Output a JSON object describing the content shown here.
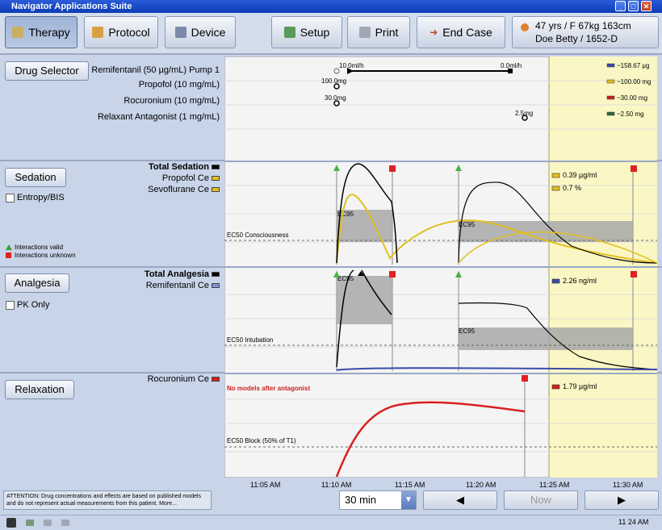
{
  "window": {
    "title": "Navigator Applications Suite"
  },
  "toolbar": {
    "therapy": "Therapy",
    "protocol": "Protocol",
    "device": "Device",
    "setup": "Setup",
    "print": "Print",
    "end_case": "End Case"
  },
  "patient": {
    "line1": "47 yrs / F   67kg  163cm",
    "line2": "Doe Betty / 1652-D"
  },
  "drug_panel": {
    "button": "Drug Selector",
    "drugs": [
      {
        "name": "Remifentanil (50 µg/mL) Pump 1",
        "value": "~158.67 µg",
        "color": "#3a4aa8"
      },
      {
        "name": "Propofol (10 mg/mL)",
        "value": "~100.00 mg",
        "color": "#e0c020"
      },
      {
        "name": "Rocuronium (10 mg/mL)",
        "value": "~30.00 mg",
        "color": "#d02020"
      },
      {
        "name": "Relaxant Antagonist (1 mg/mL)",
        "value": "~2.50 mg",
        "color": "#2a6a3a"
      }
    ],
    "events": {
      "remi_start": "10.0ml/h",
      "remi_stop": "0.0ml/h",
      "propofol": "100.0mg",
      "rocuronium": "30.0mg",
      "antagonist": "2.5mg"
    }
  },
  "sedation": {
    "button": "Sedation",
    "checkbox": "Entropy/BIS",
    "legend": [
      "Total Sedation",
      "Propofol Ce",
      "Sevoflurane Ce"
    ],
    "interactions_valid": "Interactions valid",
    "interactions_unknown": "Interactions unknown",
    "ec_label": "EC50 Consciousness",
    "ec95": "EC95",
    "value1": "0.39 µg/ml",
    "value2": "0.7 %"
  },
  "analgesia": {
    "button": "Analgesia",
    "checkbox": "PK Only",
    "legend": [
      "Total Analgesia",
      "Remifentanil Ce"
    ],
    "ec_label": "EC50 Intubation",
    "ec95": "EC95",
    "value1": "2.26 ng/ml"
  },
  "relaxation": {
    "button": "Relaxation",
    "legend": [
      "Rocuronium Ce"
    ],
    "note": "No models after antagonist",
    "ec_label": "EC50 Block (50% of T1)",
    "value1": "1.79 µg/ml"
  },
  "time_axis": [
    "11:05 AM",
    "11:10 AM",
    "11:15 AM",
    "11:20 AM",
    "11:25 AM",
    "11:30 AM"
  ],
  "bottom": {
    "attention": "ATTENTION: Drug concentrations and effects are based on published models and do not represent actual measurements from this patient. More...",
    "range": "30 min",
    "now": "Now",
    "clock": "11 24 AM"
  },
  "colors": {
    "sedation_total": "#000000",
    "propofol": "#e0c020",
    "remifentanil": "#3a4aa8",
    "rocuronium": "#d02020",
    "future_bg": "#fbf7c4"
  }
}
